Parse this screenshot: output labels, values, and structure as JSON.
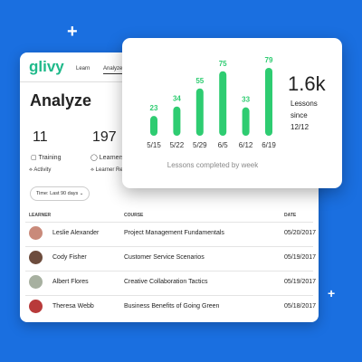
{
  "ui": {
    "logo": "glivy",
    "nav": [
      "Learn",
      "Analyze"
    ],
    "heading": "Analyze",
    "stats": [
      {
        "value": 11,
        "label": "Training",
        "link": "Activity"
      },
      {
        "value": 197,
        "label": "Learners",
        "link": "Learner Reports"
      }
    ],
    "filter": "Time: Last 90 days",
    "table": {
      "columns": [
        "LEARNER",
        "COURSE",
        "DATE"
      ],
      "rows": [
        [
          "Leslie Alexander",
          "Project Management Fundamentals",
          "05/20/2017"
        ],
        [
          "Cody Fisher",
          "Customer Service Scenarios",
          "05/19/2017"
        ],
        [
          "Albert Flores",
          "Creative Collaboration Tactics",
          "05/19/2017"
        ],
        [
          "Theresa Webb",
          "Business Benefits of Going Green",
          "05/18/2017"
        ]
      ]
    }
  },
  "chart_data": {
    "type": "bar",
    "categories": [
      "5/15",
      "5/22",
      "5/29",
      "6/5",
      "6/12",
      "6/19"
    ],
    "values": [
      23,
      34,
      55,
      75,
      33,
      79
    ],
    "color": "#2ecc71",
    "caption": "Lessons completed by week",
    "summary": {
      "value": "1.6k",
      "label": "Lessons since 12/12"
    }
  }
}
